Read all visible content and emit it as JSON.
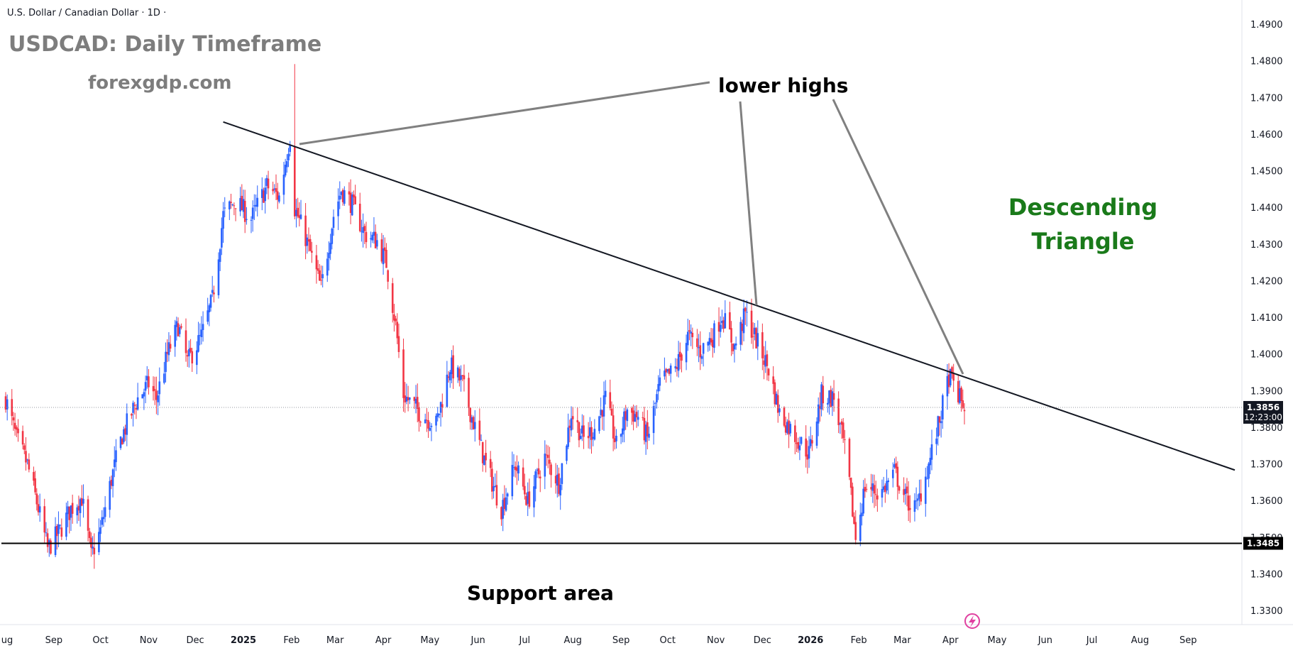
{
  "header": {
    "symbol_line": "U.S. Dollar / Canadian Dollar · 1D ·"
  },
  "annotations": {
    "title": "USDCAD: Daily Timeframe",
    "site": "forexgdp.com",
    "lower_highs": "lower highs",
    "pattern_line1": "Descending",
    "pattern_line2": "Triangle",
    "support": "Support area"
  },
  "price_tags": {
    "current_price": "1.3856",
    "countdown": "12:23:00",
    "support_price": "1.3485"
  },
  "colors": {
    "up": "#2962ff",
    "down": "#f23645",
    "pattern": "#1a7a1a",
    "annotation_line": "#808080"
  },
  "chart_data": {
    "type": "candlestick",
    "title": "USDCAD: Daily Timeframe",
    "ylim": [
      1.325,
      1.495
    ],
    "y_ticks": [
      "1.4900",
      "1.4800",
      "1.4700",
      "1.4600",
      "1.4500",
      "1.4400",
      "1.4300",
      "1.4200",
      "1.4100",
      "1.4000",
      "1.3900",
      "1.3800",
      "1.3700",
      "1.3600",
      "1.3500",
      "1.3400",
      "1.3300"
    ],
    "x_ticks": [
      "ug",
      "Sep",
      "Oct",
      "Nov",
      "Dec",
      "2025",
      "Feb",
      "Mar",
      "Apr",
      "May",
      "Jun",
      "Jul",
      "Aug",
      "Sep",
      "Oct",
      "Nov",
      "Dec",
      "2026",
      "Feb",
      "Mar",
      "Apr",
      "May",
      "Jun",
      "Jul",
      "Aug",
      "Sep"
    ],
    "x_range": [
      "2024-08-01",
      "2026-10-01"
    ],
    "price_path": [
      [
        "2024-08-01",
        1.388
      ],
      [
        "2024-08-08",
        1.377
      ],
      [
        "2024-08-15",
        1.37
      ],
      [
        "2024-08-22",
        1.358
      ],
      [
        "2024-08-28",
        1.347
      ],
      [
        "2024-09-05",
        1.352
      ],
      [
        "2024-09-12",
        1.358
      ],
      [
        "2024-09-19",
        1.361
      ],
      [
        "2024-09-25",
        1.345
      ],
      [
        "2024-10-01",
        1.352
      ],
      [
        "2024-10-08",
        1.366
      ],
      [
        "2024-10-15",
        1.378
      ],
      [
        "2024-10-25",
        1.388
      ],
      [
        "2024-11-01",
        1.392
      ],
      [
        "2024-11-06",
        1.388
      ],
      [
        "2024-11-13",
        1.4
      ],
      [
        "2024-11-20",
        1.408
      ],
      [
        "2024-11-26",
        1.398
      ],
      [
        "2024-12-05",
        1.405
      ],
      [
        "2024-12-12",
        1.415
      ],
      [
        "2024-12-19",
        1.438
      ],
      [
        "2024-12-27",
        1.442
      ],
      [
        "2025-01-06",
        1.437
      ],
      [
        "2025-01-16",
        1.446
      ],
      [
        "2025-01-24",
        1.443
      ],
      [
        "2025-02-01",
        1.462
      ],
      [
        "2025-02-03",
        1.44
      ],
      [
        "2025-02-10",
        1.432
      ],
      [
        "2025-02-20",
        1.418
      ],
      [
        "2025-02-28",
        1.438
      ],
      [
        "2025-03-05",
        1.445
      ],
      [
        "2025-03-12",
        1.441
      ],
      [
        "2025-03-20",
        1.433
      ],
      [
        "2025-03-28",
        1.431
      ],
      [
        "2025-04-03",
        1.425
      ],
      [
        "2025-04-09",
        1.408
      ],
      [
        "2025-04-14",
        1.389
      ],
      [
        "2025-04-25",
        1.384
      ],
      [
        "2025-05-05",
        1.381
      ],
      [
        "2025-05-14",
        1.397
      ],
      [
        "2025-05-22",
        1.392
      ],
      [
        "2025-05-30",
        1.38
      ],
      [
        "2025-06-06",
        1.37
      ],
      [
        "2025-06-16",
        1.358
      ],
      [
        "2025-06-25",
        1.37
      ],
      [
        "2025-07-03",
        1.36
      ],
      [
        "2025-07-14",
        1.372
      ],
      [
        "2025-07-23",
        1.365
      ],
      [
        "2025-07-31",
        1.384
      ],
      [
        "2025-08-08",
        1.377
      ],
      [
        "2025-08-15",
        1.38
      ],
      [
        "2025-08-22",
        1.388
      ],
      [
        "2025-08-29",
        1.375
      ],
      [
        "2025-09-05",
        1.385
      ],
      [
        "2025-09-12",
        1.383
      ],
      [
        "2025-09-18",
        1.377
      ],
      [
        "2025-09-26",
        1.392
      ],
      [
        "2025-10-06",
        1.396
      ],
      [
        "2025-10-14",
        1.405
      ],
      [
        "2025-10-22",
        1.401
      ],
      [
        "2025-10-30",
        1.405
      ],
      [
        "2025-11-05",
        1.411
      ],
      [
        "2025-11-13",
        1.402
      ],
      [
        "2025-11-20",
        1.411
      ],
      [
        "2025-11-27",
        1.404
      ],
      [
        "2025-12-05",
        1.396
      ],
      [
        "2025-12-12",
        1.384
      ],
      [
        "2025-12-20",
        1.379
      ],
      [
        "2025-12-31",
        1.373
      ],
      [
        "2026-01-08",
        1.389
      ],
      [
        "2026-01-16",
        1.388
      ],
      [
        "2026-01-24",
        1.372
      ],
      [
        "2026-01-30",
        1.35
      ],
      [
        "2026-02-05",
        1.364
      ],
      [
        "2026-02-15",
        1.362
      ],
      [
        "2026-02-24",
        1.368
      ],
      [
        "2026-03-04",
        1.36
      ],
      [
        "2026-03-10",
        1.358
      ],
      [
        "2026-03-18",
        1.37
      ],
      [
        "2026-03-25",
        1.382
      ],
      [
        "2026-03-31",
        1.394
      ],
      [
        "2026-04-03",
        1.392
      ],
      [
        "2026-04-07",
        1.388
      ],
      [
        "2026-04-10",
        1.3856
      ]
    ],
    "trendline": [
      [
        "2024-12-19",
        1.4635
      ],
      [
        "2026-10-01",
        1.3685
      ]
    ],
    "support_level": 1.3485,
    "current_price": 1.3856
  }
}
